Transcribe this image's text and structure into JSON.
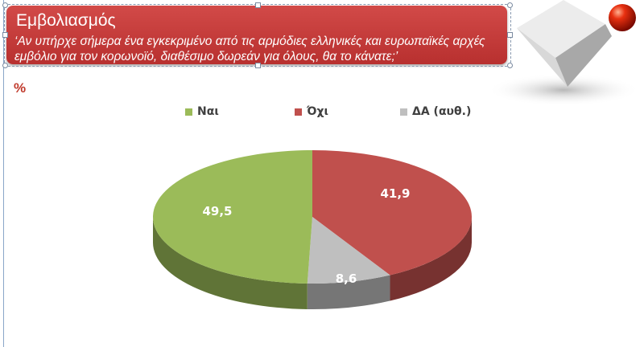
{
  "slide": {
    "title": "Εμβολιασμός",
    "question": "‘Αν υπήρχε σήμερα ένα εγκεκριμένο από τις αρμόδιες ελληνικές και ευρωπαϊκές αρχές εμβόλιο για τον κορωνοϊό, διαθέσιμο δωρεάν για όλους, θα το κάνατε;’",
    "unit_label": "%"
  },
  "colors": {
    "title_bg": "#c43c3a",
    "yes": "#9BBB59",
    "no": "#C0504D",
    "dk": "#BFBFBF"
  },
  "chart_data": {
    "type": "pie",
    "style": "3d",
    "legend_position": "top",
    "categories": [
      "Ναι",
      "Όχι",
      "ΔΑ (αυθ.)"
    ],
    "values": [
      49.5,
      41.9,
      8.6
    ],
    "data_labels": [
      "49,5",
      "41,9",
      "8,6"
    ],
    "colors": [
      "#9BBB59",
      "#C0504D",
      "#BFBFBF"
    ]
  }
}
